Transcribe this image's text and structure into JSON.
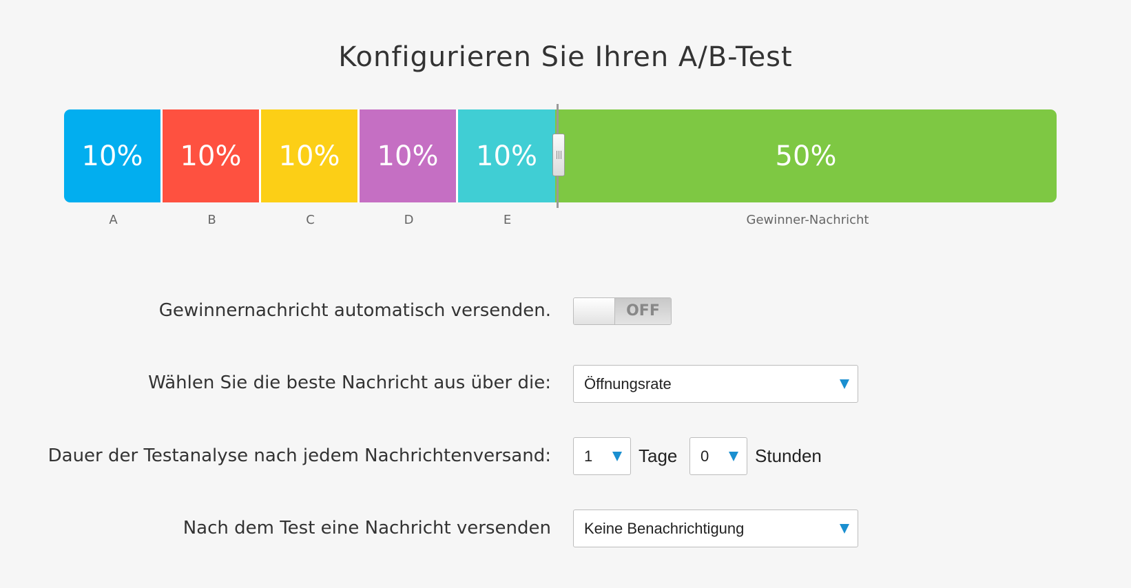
{
  "title": "Konfigurieren Sie Ihren A/B-Test",
  "split": {
    "segments": [
      {
        "name": "A",
        "percent_label": "10%",
        "percent": 10,
        "color": "#02aeef"
      },
      {
        "name": "B",
        "percent_label": "10%",
        "percent": 10,
        "color": "#fe5140"
      },
      {
        "name": "C",
        "percent_label": "10%",
        "percent": 10,
        "color": "#fccf16"
      },
      {
        "name": "D",
        "percent_label": "10%",
        "percent": 10,
        "color": "#c56fc3"
      },
      {
        "name": "E",
        "percent_label": "10%",
        "percent": 10,
        "color": "#40ced4"
      },
      {
        "name": "Gewinner-Nachricht",
        "percent_label": "50%",
        "percent": 50,
        "color": "#7ec843"
      }
    ]
  },
  "form": {
    "auto_send": {
      "label": "Gewinnernachricht automatisch versenden.",
      "toggle_text": "OFF"
    },
    "best_message": {
      "label": "Wählen Sie die beste Nachricht aus über die:",
      "value": "Öffnungsrate"
    },
    "duration": {
      "label": "Dauer der Testanalyse nach jedem Nachrichtenversand:",
      "days_value": "1",
      "days_unit": "Tage",
      "hours_value": "0",
      "hours_unit": "Stunden"
    },
    "after_test": {
      "label": "Nach dem Test eine Nachricht versenden",
      "value": "Keine Benachrichtigung"
    }
  },
  "colors": {
    "arrow": "#1a8fd0",
    "background": "#f6f6f6"
  }
}
